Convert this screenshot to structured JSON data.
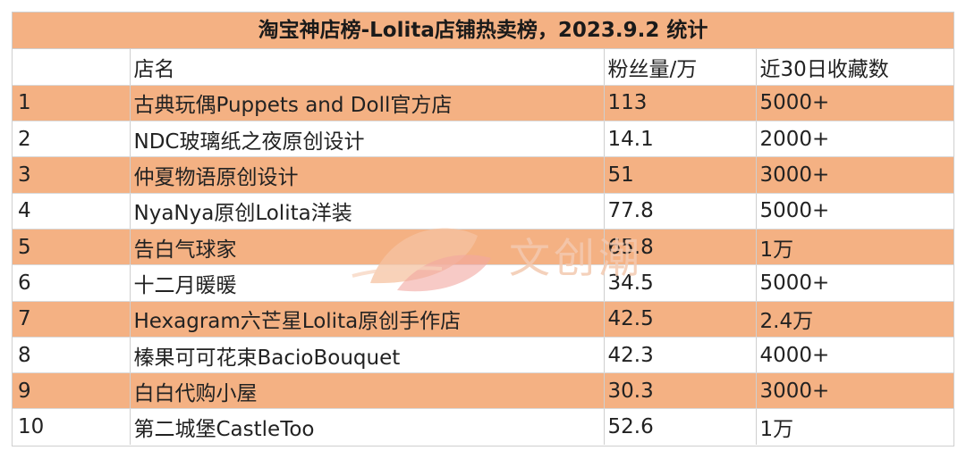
{
  "colors": {
    "accent_row": "#f4b183",
    "header_fill": "#f4b183",
    "plain_row": "#ffffff",
    "watermark": "#f3c9b0"
  },
  "chart_data": {
    "type": "table",
    "title": "淘宝神店榜-Lolita店铺热卖榜，2023.9.2 统计",
    "columns": [
      "",
      "店名",
      "粉丝量/万",
      "近30日收藏数"
    ],
    "rows": [
      {
        "rank": "1",
        "name": "古典玩偶Puppets and Doll官方店",
        "fans": "113",
        "favorites": "5000+"
      },
      {
        "rank": "2",
        "name": "NDC玻璃纸之夜原创设计",
        "fans": "14.1",
        "favorites": "2000+"
      },
      {
        "rank": "3",
        "name": "仲夏物语原创设计",
        "fans": "51",
        "favorites": "3000+"
      },
      {
        "rank": "4",
        "name": "NyaNya原创Lolita洋装",
        "fans": "77.8",
        "favorites": "5000+"
      },
      {
        "rank": "5",
        "name": "告白气球家",
        "fans": "65.8",
        "favorites": "1万"
      },
      {
        "rank": "6",
        "name": "十二月暖暖",
        "fans": "34.5",
        "favorites": "5000+"
      },
      {
        "rank": "7",
        "name": "Hexagram六芒星Lolita原创手作店",
        "fans": "42.5",
        "favorites": "2.4万"
      },
      {
        "rank": "8",
        "name": "榛果可可花束BacioBouquet",
        "fans": "42.3",
        "favorites": "4000+"
      },
      {
        "rank": "9",
        "name": "白白代购小屋",
        "fans": "30.3",
        "favorites": "3000+"
      },
      {
        "rank": "10",
        "name": "第二城堡CastleToo",
        "fans": "52.6",
        "favorites": "1万"
      }
    ]
  },
  "watermark": {
    "text": "文创潮",
    "icon": "leaf-logo-icon"
  }
}
